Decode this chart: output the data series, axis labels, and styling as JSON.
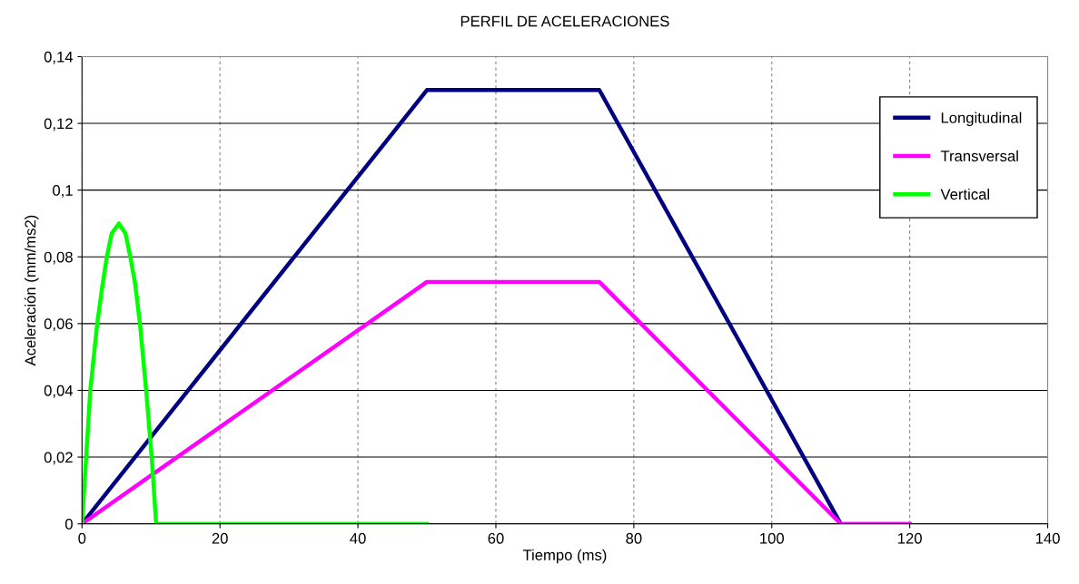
{
  "chart_data": {
    "type": "line",
    "title": "PERFIL DE ACELERACIONES",
    "xlabel": "Tiempo (ms)",
    "ylabel": "Aceleración (mm/ms2)",
    "xlim": [
      0,
      140
    ],
    "xticks": [
      0,
      20,
      40,
      60,
      80,
      100,
      120,
      140
    ],
    "ylim": [
      0,
      0.14
    ],
    "yticks": [
      {
        "value": 0,
        "label": "0"
      },
      {
        "value": 0.02,
        "label": "0,02"
      },
      {
        "value": 0.04,
        "label": "0,04"
      },
      {
        "value": 0.06,
        "label": "0,06"
      },
      {
        "value": 0.08,
        "label": "0,08"
      },
      {
        "value": 0.1,
        "label": "0,1"
      },
      {
        "value": 0.12,
        "label": "0,12"
      },
      {
        "value": 0.14,
        "label": "0,14"
      }
    ],
    "grid": true,
    "legend": "top right",
    "marker": "none",
    "line_style": "solid",
    "series": [
      {
        "name": "Longitudinal",
        "color": "#000080",
        "x": [
          0,
          50,
          75,
          110
        ],
        "values": [
          0,
          0.13,
          0.13,
          0
        ]
      },
      {
        "name": "Transversal",
        "color": "#ff00ff",
        "x": [
          0,
          50,
          75,
          110,
          120
        ],
        "values": [
          0,
          0.0725,
          0.0725,
          0,
          0
        ]
      },
      {
        "name": "Vertical",
        "color": "#00ff00",
        "x": [
          0,
          0.6,
          1.2,
          2.2,
          3.0,
          3.6,
          4.3,
          5.35,
          6.3,
          7.0,
          7.7,
          8.4,
          9.3,
          10.1,
          10.75,
          50
        ],
        "values": [
          0,
          0.02,
          0.04,
          0.06,
          0.072,
          0.08,
          0.087,
          0.09,
          0.087,
          0.08,
          0.072,
          0.06,
          0.04,
          0.02,
          0,
          0
        ]
      }
    ]
  }
}
